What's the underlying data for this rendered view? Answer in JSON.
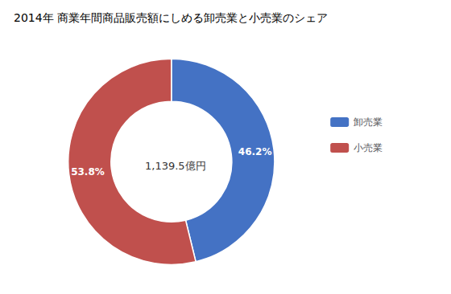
{
  "chart_data": {
    "type": "pie",
    "title": "2014年 商業年間商品販売額にしめる卸売業と小売業のシェア",
    "categories": [
      "卸売業",
      "小売業"
    ],
    "values": [
      46.2,
      53.8
    ],
    "value_labels": [
      "46.2%",
      "53.8%"
    ],
    "colors": [
      "#4472C4",
      "#C0504D"
    ],
    "annotation": "1,139.5億円",
    "data_labels": true,
    "legend": "right"
  }
}
